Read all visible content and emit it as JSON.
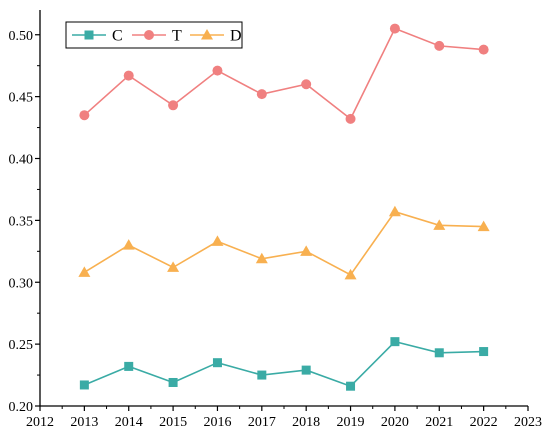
{
  "chart_data": {
    "type": "line",
    "title": "",
    "xlabel": "",
    "ylabel": "",
    "xlim": [
      2012,
      2023
    ],
    "ylim": [
      0.2,
      0.52
    ],
    "xticks": [
      "2012",
      "2013",
      "2014",
      "2015",
      "2016",
      "2017",
      "2018",
      "2019",
      "2020",
      "2021",
      "2022",
      "2023"
    ],
    "yticks": [
      "0.20",
      "0.25",
      "0.30",
      "0.35",
      "0.40",
      "0.45",
      "0.50"
    ],
    "grid": false,
    "legend_position": "top-left",
    "x": [
      2013,
      2014,
      2015,
      2016,
      2017,
      2018,
      2019,
      2020,
      2021,
      2022
    ],
    "series": [
      {
        "name": "C",
        "color": "#3aaba5",
        "marker": "square",
        "values": [
          0.217,
          0.232,
          0.219,
          0.235,
          0.225,
          0.229,
          0.216,
          0.252,
          0.243,
          0.244
        ]
      },
      {
        "name": "T",
        "color": "#f08080",
        "marker": "circle",
        "values": [
          0.435,
          0.467,
          0.443,
          0.471,
          0.452,
          0.46,
          0.432,
          0.505,
          0.491,
          0.488
        ]
      },
      {
        "name": "D",
        "color": "#f8b050",
        "marker": "triangle",
        "values": [
          0.308,
          0.33,
          0.312,
          0.333,
          0.319,
          0.325,
          0.306,
          0.357,
          0.346,
          0.345
        ]
      }
    ]
  }
}
